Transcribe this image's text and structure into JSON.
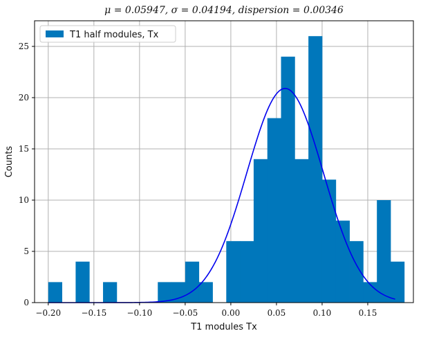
{
  "chart_data": {
    "type": "bar",
    "title": "μ = 0.05947, σ = 0.04194, dispersion = 0.00346",
    "xlabel": "T1 modules Tx",
    "ylabel": "Counts",
    "xlim": [
      -0.215,
      0.2
    ],
    "ylim": [
      0,
      27.5
    ],
    "xticks": [
      -0.2,
      -0.15,
      -0.1,
      -0.05,
      0.0,
      0.05,
      0.1,
      0.15
    ],
    "xtick_labels": [
      "−0.20",
      "−0.15",
      "−0.10",
      "−0.05",
      "0.00",
      "0.05",
      "0.10",
      "0.15"
    ],
    "yticks": [
      0,
      5,
      10,
      15,
      20,
      25
    ],
    "ytick_labels": [
      "0",
      "5",
      "10",
      "15",
      "20",
      "25"
    ],
    "grid": true,
    "legend": {
      "position": "top-left",
      "entries": [
        "T1 half modules, Tx"
      ]
    },
    "bar_color": "#0077bb",
    "fit_color": "#0000ee",
    "histogram": {
      "bin_start": -0.2,
      "bin_width": 0.015,
      "counts": [
        2,
        0,
        4,
        0,
        2,
        0,
        0,
        0,
        2,
        2,
        4,
        2,
        0,
        6,
        6,
        14,
        18,
        24,
        14,
        26,
        12,
        8,
        6,
        2,
        10,
        4
      ]
    },
    "fit": {
      "type": "gaussian",
      "mu": 0.05947,
      "sigma": 0.04194,
      "peak": 20.9,
      "x_range": [
        -0.2,
        0.18
      ]
    }
  }
}
